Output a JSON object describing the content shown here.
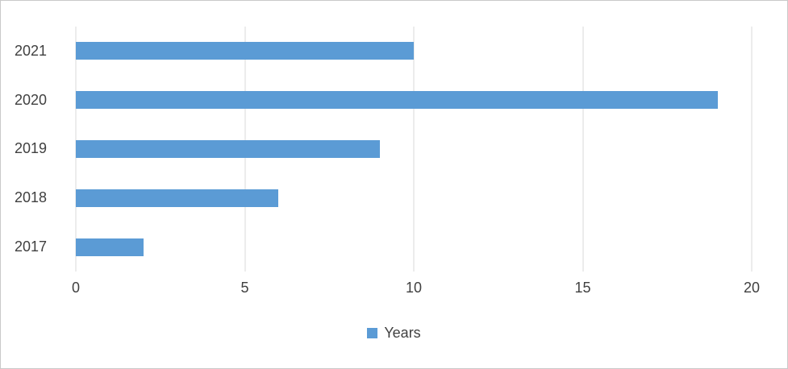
{
  "chart_data": {
    "type": "bar",
    "orientation": "horizontal",
    "title": "",
    "xlabel": "",
    "ylabel": "",
    "categories": [
      "2021",
      "2020",
      "2019",
      "2018",
      "2017"
    ],
    "series": [
      {
        "name": "Years",
        "values": [
          10,
          19,
          9,
          6,
          2
        ]
      }
    ],
    "xlim": [
      0,
      20
    ],
    "xticks": [
      0,
      5,
      10,
      15,
      20
    ],
    "grid": "vertical-gridlines-on",
    "legend_position": "bottom-center"
  },
  "colors": {
    "bar": "#5B9BD5",
    "gridline": "#D9D9D9",
    "text": "#404040",
    "border": "#C9C9C9",
    "background": "#FFFFFF"
  }
}
